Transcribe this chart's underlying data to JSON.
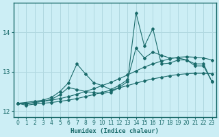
{
  "xlabel": "Humidex (Indice chaleur)",
  "ylabel": "",
  "bg_color": "#cceef5",
  "line_color": "#1a6b6b",
  "grid_color": "#b0d8e0",
  "xlim": [
    -0.5,
    23.5
  ],
  "ylim": [
    11.85,
    14.75
  ],
  "yticks": [
    12,
    13,
    14
  ],
  "xticks": [
    0,
    1,
    2,
    3,
    4,
    5,
    6,
    7,
    8,
    9,
    10,
    11,
    12,
    13,
    14,
    15,
    16,
    17,
    18,
    19,
    20,
    21,
    22,
    23
  ],
  "lines": [
    {
      "x": [
        0,
        1,
        2,
        3,
        4,
        5,
        6,
        7,
        8,
        9,
        10,
        11,
        12,
        13,
        14,
        15,
        16,
        17,
        18,
        19,
        20,
        21,
        22,
        23
      ],
      "y": [
        12.2,
        12.2,
        12.22,
        12.25,
        12.28,
        12.32,
        12.37,
        12.43,
        12.5,
        12.57,
        12.65,
        12.73,
        12.82,
        12.92,
        13.02,
        13.12,
        13.2,
        13.27,
        13.33,
        13.37,
        13.38,
        13.37,
        13.35,
        13.3
      ]
    },
    {
      "x": [
        0,
        1,
        2,
        3,
        4,
        5,
        6,
        7,
        8,
        9,
        10,
        11,
        12,
        13,
        14,
        15,
        16,
        17,
        18,
        19,
        20,
        21,
        22,
        23
      ],
      "y": [
        12.2,
        12.18,
        12.22,
        12.25,
        12.3,
        12.42,
        12.6,
        12.55,
        12.5,
        12.47,
        12.45,
        12.48,
        12.6,
        12.75,
        14.5,
        13.65,
        14.1,
        13.2,
        13.22,
        13.3,
        13.3,
        13.15,
        13.15,
        12.75
      ]
    },
    {
      "x": [
        0,
        2,
        3,
        4,
        5,
        6,
        7,
        8,
        9,
        10,
        11,
        12,
        13,
        14,
        15,
        16,
        17,
        18,
        19,
        20,
        21,
        22,
        23
      ],
      "y": [
        12.2,
        12.25,
        12.28,
        12.35,
        12.5,
        12.72,
        13.2,
        12.95,
        12.72,
        12.65,
        12.55,
        12.65,
        12.8,
        13.6,
        13.35,
        13.5,
        13.42,
        13.35,
        13.35,
        13.3,
        13.2,
        13.2,
        12.75
      ]
    },
    {
      "x": [
        0,
        1,
        2,
        3,
        4,
        5,
        6,
        7,
        8,
        9,
        10,
        11,
        12,
        13,
        14,
        15,
        16,
        17,
        18,
        19,
        20,
        21,
        22,
        23
      ],
      "y": [
        12.2,
        12.15,
        12.18,
        12.2,
        12.22,
        12.25,
        12.28,
        12.32,
        12.37,
        12.42,
        12.48,
        12.53,
        12.59,
        12.65,
        12.71,
        12.77,
        12.82,
        12.86,
        12.9,
        12.93,
        12.95,
        12.96,
        12.96,
        12.95
      ]
    }
  ]
}
